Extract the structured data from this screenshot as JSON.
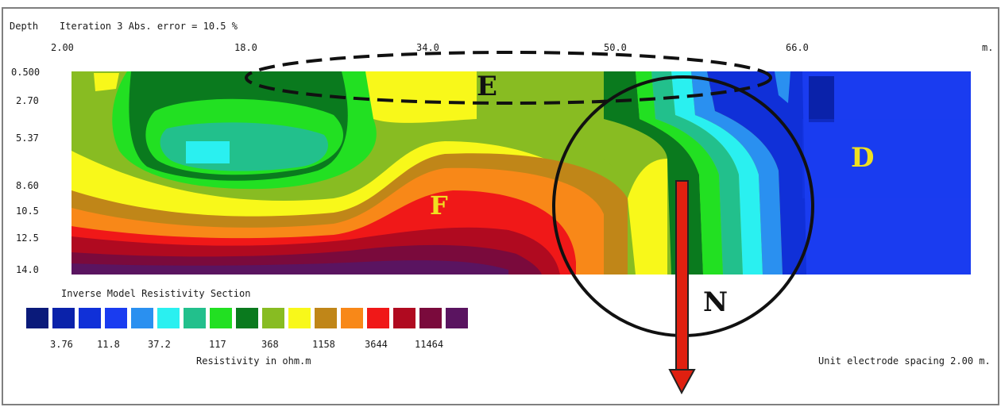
{
  "header": {
    "depth_label": "Depth",
    "iteration_text": "Iteration 3 Abs. error = 10.5 %",
    "unit": "m."
  },
  "x_ticks": [
    "2.00",
    "18.0",
    "34.0",
    "50.0",
    "66.0"
  ],
  "depth_ticks": [
    "0.500",
    "2.70",
    "5.37",
    "8.60",
    "10.5",
    "12.5",
    "14.0"
  ],
  "legend": {
    "title": "Inverse Model Resistivity Section",
    "labels": [
      "3.76",
      "11.8",
      "37.2",
      "117",
      "368",
      "1158",
      "3644",
      "11464"
    ],
    "unit_label": "Resistivity in ohm.m",
    "colors": [
      "#0a1a7a",
      "#0a22aa",
      "#1030d8",
      "#1a3cf0",
      "#2a90f0",
      "#2af0f0",
      "#22c08c",
      "#22e022",
      "#0a7a1e",
      "#88bc22",
      "#f8f81a",
      "#c08618",
      "#f88818",
      "#f01818",
      "#b00a20",
      "#7a0a3c",
      "#5a1460"
    ]
  },
  "electrode_spacing": "Unit electrode spacing 2.00 m.",
  "annotations": {
    "E": "E",
    "F": "F",
    "D": "D",
    "N": "N"
  },
  "chart_data": {
    "type": "heatmap",
    "title": "Inverse Model Resistivity Section",
    "xlabel": "",
    "ylabel": "Depth",
    "x_ticks": [
      2.0,
      18.0,
      34.0,
      50.0,
      66.0
    ],
    "depth_ticks": [
      0.5,
      2.7,
      5.37,
      8.6,
      10.5,
      12.5,
      14.0
    ],
    "xlim": [
      2.0,
      82.0
    ],
    "ylim": [
      0.5,
      14.0
    ],
    "color_scale_labels": [
      3.76,
      11.8,
      37.2,
      117,
      368,
      1158,
      3644,
      11464
    ],
    "color_scale_unit": "ohm.m",
    "iteration": 3,
    "abs_error_percent": 10.5,
    "electrode_spacing_m": 2.0
  }
}
